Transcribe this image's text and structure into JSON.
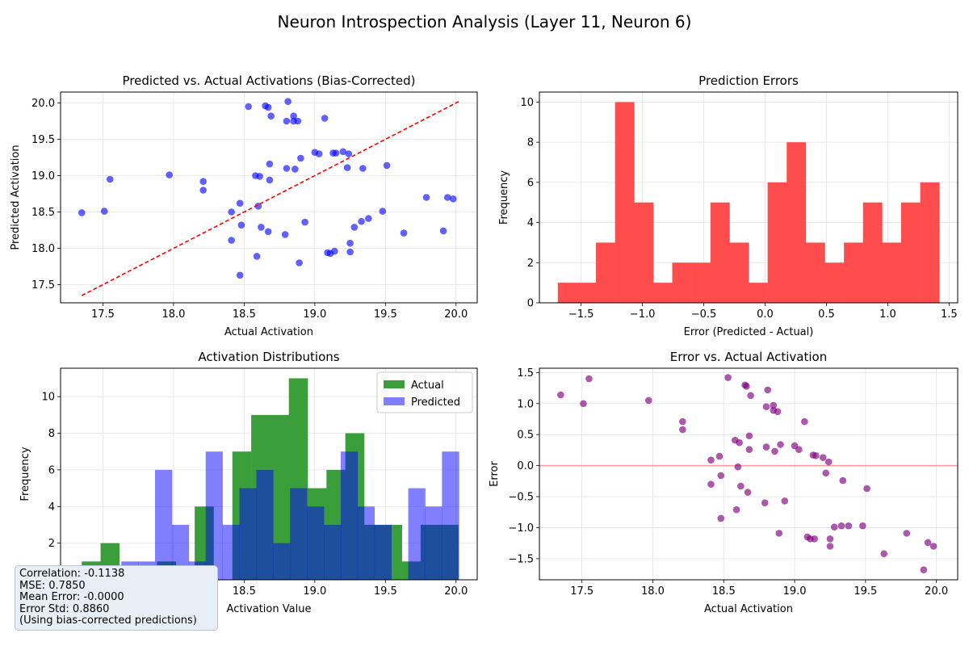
{
  "figure_title": "Neuron Introspection Analysis (Layer 11, Neuron 6)",
  "colors": {
    "scatter": "#0000ff",
    "diag": "#ff0000",
    "hist_error": "#ff4d4d",
    "actual": "#3a9e3a",
    "predicted": "#7f7fff",
    "overlap": "#234fa8",
    "err_scatter": "#800080",
    "zero_line": "#ff9999"
  },
  "stats": {
    "correlation": "Correlation: -0.1138",
    "mse": "MSE: 0.7850",
    "mean_error": "Mean Error: -0.0000",
    "error_std": "Error Std: 0.8860",
    "note": "(Using bias-corrected predictions)"
  },
  "chart_data": [
    {
      "type": "scatter",
      "title": "Predicted vs. Actual Activations (Bias-Corrected)",
      "xlabel": "Actual Activation",
      "ylabel": "Predicted Activation",
      "xlim": [
        17.2,
        20.15
      ],
      "ylim": [
        17.25,
        20.15
      ],
      "xticks": [
        17.5,
        18.0,
        18.5,
        19.0,
        19.5,
        20.0
      ],
      "yticks": [
        17.5,
        18.0,
        18.5,
        19.0,
        19.5,
        20.0
      ],
      "grid": true,
      "diagonal": [
        17.35,
        20.02
      ],
      "points": [
        [
          17.35,
          18.49
        ],
        [
          17.51,
          18.51
        ],
        [
          17.55,
          18.95
        ],
        [
          17.97,
          19.01
        ],
        [
          18.21,
          18.92
        ],
        [
          18.21,
          18.8
        ],
        [
          18.41,
          18.5
        ],
        [
          18.41,
          18.11
        ],
        [
          18.47,
          18.62
        ],
        [
          18.48,
          18.32
        ],
        [
          18.47,
          17.63
        ],
        [
          18.53,
          19.95
        ],
        [
          18.58,
          19.0
        ],
        [
          18.59,
          17.89
        ],
        [
          18.6,
          18.58
        ],
        [
          18.61,
          18.99
        ],
        [
          18.62,
          18.29
        ],
        [
          18.65,
          19.96
        ],
        [
          18.67,
          19.94
        ],
        [
          18.67,
          18.23
        ],
        [
          18.68,
          18.94
        ],
        [
          18.68,
          19.16
        ],
        [
          18.69,
          19.82
        ],
        [
          18.79,
          18.19
        ],
        [
          18.8,
          19.1
        ],
        [
          18.8,
          19.75
        ],
        [
          18.81,
          20.02
        ],
        [
          18.85,
          19.82
        ],
        [
          18.85,
          19.75
        ],
        [
          18.86,
          19.09
        ],
        [
          18.88,
          19.75
        ],
        [
          18.89,
          17.8
        ],
        [
          18.9,
          19.24
        ],
        [
          18.93,
          18.36
        ],
        [
          19.0,
          19.32
        ],
        [
          19.03,
          19.3
        ],
        [
          19.07,
          19.79
        ],
        [
          19.09,
          17.94
        ],
        [
          19.11,
          17.93
        ],
        [
          19.13,
          19.31
        ],
        [
          19.14,
          17.96
        ],
        [
          19.15,
          19.31
        ],
        [
          19.2,
          19.33
        ],
        [
          19.23,
          19.11
        ],
        [
          19.24,
          19.3
        ],
        [
          19.25,
          18.07
        ],
        [
          19.25,
          17.95
        ],
        [
          19.28,
          18.29
        ],
        [
          19.33,
          18.37
        ],
        [
          19.34,
          19.1
        ],
        [
          19.38,
          18.41
        ],
        [
          19.48,
          18.51
        ],
        [
          19.51,
          19.14
        ],
        [
          19.63,
          18.21
        ],
        [
          19.79,
          18.7
        ],
        [
          19.91,
          18.24
        ],
        [
          19.94,
          18.7
        ],
        [
          19.98,
          18.68
        ]
      ]
    },
    {
      "type": "bar",
      "title": "Prediction Errors",
      "xlabel": "Error (Predicted - Actual)",
      "ylabel": "Frequency",
      "xlim": [
        -1.84,
        1.57
      ],
      "ylim": [
        0,
        10.5
      ],
      "xticks": [
        -1.5,
        -1.0,
        -0.5,
        0.0,
        0.5,
        1.0,
        1.5
      ],
      "yticks": [
        0,
        2,
        4,
        6,
        8,
        10
      ],
      "grid": true,
      "bin_start": -1.69,
      "bin_width": 0.1555,
      "values": [
        1,
        1,
        3,
        10,
        5,
        1,
        2,
        2,
        5,
        3,
        1,
        6,
        8,
        3,
        2,
        3,
        5,
        3,
        5,
        6
      ]
    },
    {
      "type": "bar",
      "title": "Activation Distributions",
      "xlabel": "Activation Value",
      "ylabel": "Frequency",
      "xlim": [
        17.2,
        20.15
      ],
      "ylim": [
        0,
        11.55
      ],
      "xticks": [
        17.5,
        18.0,
        18.5,
        19.0,
        19.5,
        20.0
      ],
      "yticks": [
        0,
        2,
        4,
        6,
        8,
        10
      ],
      "grid": true,
      "legend": "top-right",
      "series": [
        {
          "name": "Actual",
          "bin_start": 17.35,
          "bin_width": 0.1333,
          "values": [
            1,
            2,
            0,
            0,
            1,
            0,
            4,
            0,
            7,
            9,
            9,
            11,
            5,
            6,
            8,
            3,
            3,
            1,
            3,
            3
          ]
        },
        {
          "name": "Predicted",
          "bin_start": 17.63,
          "bin_width": 0.1195,
          "values": [
            1,
            1,
            6,
            3,
            1,
            7,
            3,
            5,
            6,
            2,
            5,
            4,
            3,
            7,
            4,
            3,
            0,
            5,
            4,
            7
          ]
        }
      ]
    },
    {
      "type": "scatter",
      "title": "Error vs. Actual Activation",
      "xlabel": "Actual Activation",
      "ylabel": "Error",
      "xlim": [
        17.2,
        20.15
      ],
      "ylim": [
        -1.84,
        1.57
      ],
      "xticks": [
        17.5,
        18.0,
        18.5,
        19.0,
        19.5,
        20.0
      ],
      "yticks": [
        -1.5,
        -1.0,
        -0.5,
        0.0,
        0.5,
        1.0,
        1.5
      ],
      "grid": true,
      "hline": 0,
      "points": [
        [
          17.35,
          1.14
        ],
        [
          17.51,
          1.0
        ],
        [
          17.55,
          1.4
        ],
        [
          17.97,
          1.05
        ],
        [
          18.21,
          0.71
        ],
        [
          18.21,
          0.58
        ],
        [
          18.41,
          0.09
        ],
        [
          18.41,
          -0.3
        ],
        [
          18.47,
          0.15
        ],
        [
          18.48,
          -0.16
        ],
        [
          18.48,
          -0.85
        ],
        [
          18.53,
          1.42
        ],
        [
          18.58,
          0.41
        ],
        [
          18.59,
          -0.71
        ],
        [
          18.6,
          -0.02
        ],
        [
          18.61,
          0.37
        ],
        [
          18.62,
          -0.33
        ],
        [
          18.65,
          1.3
        ],
        [
          18.66,
          1.28
        ],
        [
          18.67,
          -0.43
        ],
        [
          18.68,
          0.26
        ],
        [
          18.68,
          0.48
        ],
        [
          18.69,
          1.13
        ],
        [
          18.79,
          -0.6
        ],
        [
          18.8,
          0.3
        ],
        [
          18.8,
          0.95
        ],
        [
          18.81,
          1.22
        ],
        [
          18.85,
          0.97
        ],
        [
          18.85,
          0.89
        ],
        [
          18.86,
          0.23
        ],
        [
          18.88,
          0.87
        ],
        [
          18.89,
          -1.09
        ],
        [
          18.9,
          0.34
        ],
        [
          18.93,
          -0.57
        ],
        [
          19.0,
          0.32
        ],
        [
          19.03,
          0.26
        ],
        [
          19.07,
          0.71
        ],
        [
          19.09,
          -1.15
        ],
        [
          19.11,
          -1.18
        ],
        [
          19.13,
          0.17
        ],
        [
          19.14,
          -1.18
        ],
        [
          19.15,
          0.16
        ],
        [
          19.2,
          0.13
        ],
        [
          19.22,
          -0.12
        ],
        [
          19.24,
          0.06
        ],
        [
          19.25,
          -1.18
        ],
        [
          19.25,
          -1.3
        ],
        [
          19.28,
          -0.99
        ],
        [
          19.33,
          -0.97
        ],
        [
          19.34,
          -0.24
        ],
        [
          19.38,
          -0.97
        ],
        [
          19.48,
          -0.97
        ],
        [
          19.51,
          -0.37
        ],
        [
          19.63,
          -1.42
        ],
        [
          19.79,
          -1.09
        ],
        [
          19.91,
          -1.68
        ],
        [
          19.94,
          -1.24
        ],
        [
          19.98,
          -1.3
        ]
      ]
    }
  ]
}
